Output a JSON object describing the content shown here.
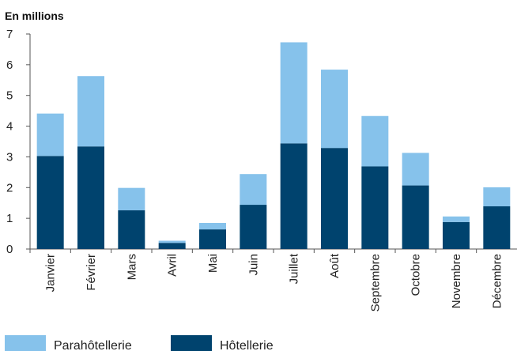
{
  "chart_data": {
    "type": "bar",
    "stacked": true,
    "unit_label": "En millions",
    "categories": [
      "Janvier",
      "Février",
      "Mars",
      "Avril",
      "Mai",
      "Juin",
      "Juillet",
      "Août",
      "Septembre",
      "Octobre",
      "Novembre",
      "Décembre"
    ],
    "series": [
      {
        "name": "Hôtellerie",
        "color": "#00436e",
        "values": [
          3.03,
          3.34,
          1.26,
          0.2,
          0.64,
          1.44,
          3.44,
          3.29,
          2.69,
          2.07,
          0.88,
          1.39
        ]
      },
      {
        "name": "Parahôtellerie",
        "color": "#86c2eb",
        "values": [
          1.38,
          2.29,
          0.73,
          0.07,
          0.21,
          1.0,
          3.29,
          2.55,
          1.64,
          1.06,
          0.18,
          0.62
        ]
      }
    ],
    "ylim": [
      0,
      7
    ],
    "yticks": [
      0,
      1,
      2,
      3,
      4,
      5,
      6,
      7
    ],
    "grid": false,
    "legend_position": "bottom-left"
  }
}
